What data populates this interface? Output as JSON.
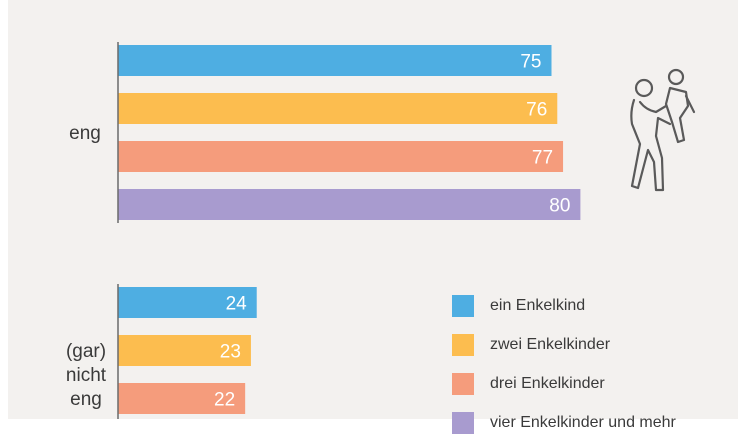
{
  "chart_data": {
    "type": "bar",
    "orientation": "horizontal",
    "categories": [
      "eng",
      "(gar) nicht eng"
    ],
    "series": [
      {
        "name": "ein Enkelkind",
        "values": [
          75,
          24
        ],
        "color": "#4eaee2"
      },
      {
        "name": "zwei Enkelkinder",
        "values": [
          76,
          23
        ],
        "color": "#fcbd4f"
      },
      {
        "name": "drei Enkelkinder",
        "values": [
          77,
          22
        ],
        "color": "#f59c7c"
      },
      {
        "name": "vier Enkelkinder und mehr",
        "values": [
          80,
          null
        ],
        "color": "#a89bcf"
      }
    ],
    "xlim": [
      0,
      100
    ],
    "data_labels": true,
    "grid": false,
    "legend_placement": "bottom-right"
  },
  "category_labels": {
    "eng": "eng",
    "nicht_eng_lines": [
      "(gar)",
      "nicht",
      "eng"
    ]
  },
  "legend": [
    {
      "label": "ein Enkelkind",
      "color": "#4eaee2"
    },
    {
      "label": "zwei Enkelkinder",
      "color": "#fcbd4f"
    },
    {
      "label": "drei Enkelkinder",
      "color": "#f59c7c"
    },
    {
      "label": "vier Enkelkinder und mehr",
      "color": "#a89bcf"
    }
  ],
  "icon": "grandparent-holding-child-icon"
}
